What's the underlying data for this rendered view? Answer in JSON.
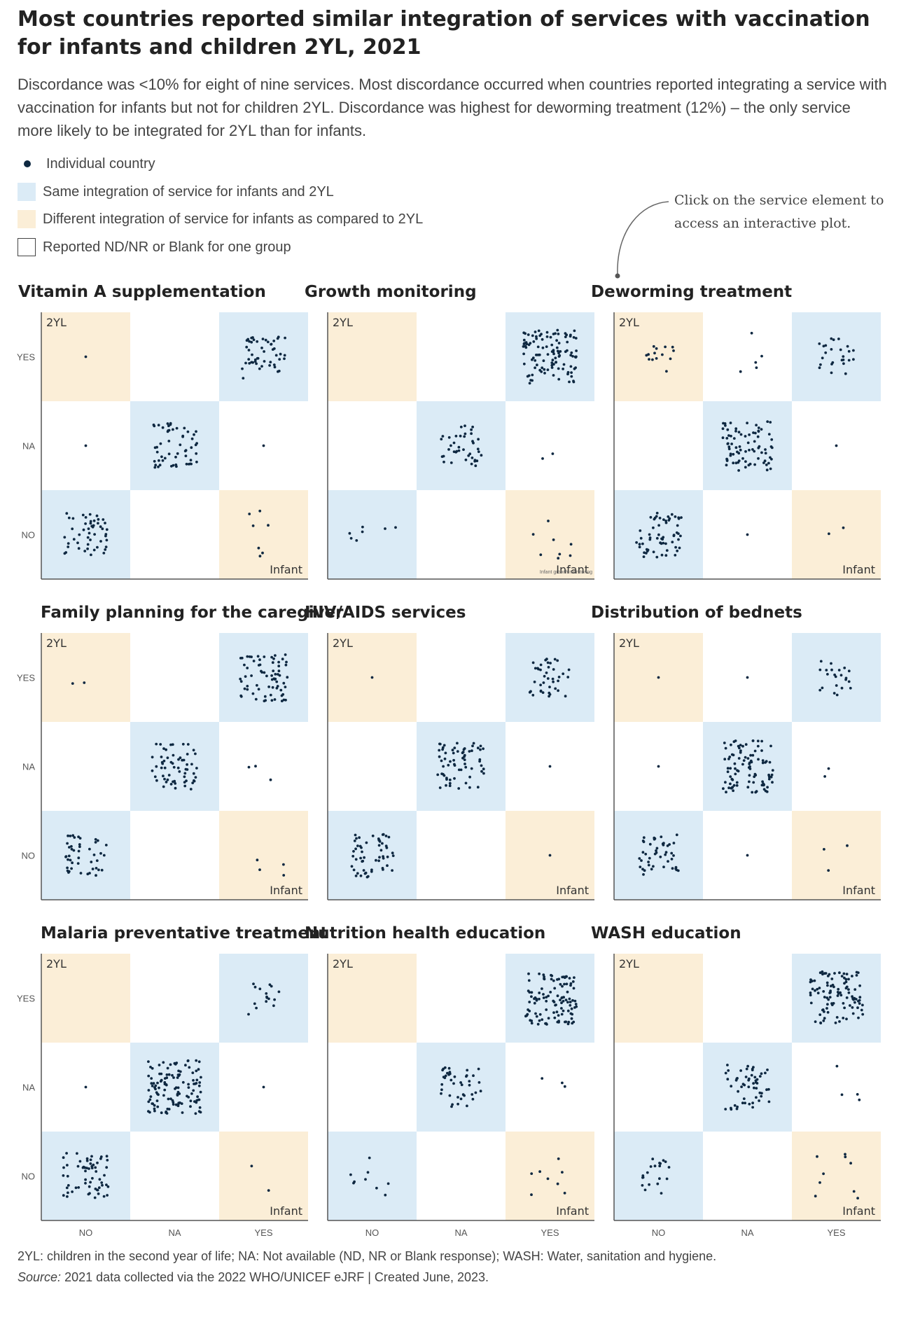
{
  "title": "Most countries reported similar integration of services with vaccination for infants and children 2YL, 2021",
  "subtitle": "Discordance was <10% for eight of nine services. Most discordance occurred when countries reported integrating a service with vaccination for infants but not for children 2YL. Discordance was highest for deworming treatment (12%) – the only service more likely to be integrated for 2YL than for infants.",
  "legend": {
    "individual_country": "Individual country",
    "same": "Same integration of service for infants and 2YL",
    "different": "Different integration of service for infants as compared to 2YL",
    "reported_nd": "Reported ND/NR or Blank for one group"
  },
  "callout": "Click on the service element to access an interactive plot.",
  "colors": {
    "same": "#dbebf6",
    "different": "#fbeed7",
    "dot": "#0e2841",
    "blank_border": "#444444"
  },
  "chart_data": {
    "type": "scatter",
    "x_categories": [
      "NO",
      "NA",
      "YES"
    ],
    "y_categories": [
      "YES",
      "NA",
      "NO"
    ],
    "x_label": "Infant",
    "y_label": "2YL",
    "panel_note": "Infant growth monitoring",
    "panels": [
      {
        "name": "Vitamin A supplementation",
        "counts": {
          "NO|YES": 1,
          "NA|YES": 0,
          "YES|YES": 50,
          "NO|NA": 1,
          "NA|NA": 55,
          "YES|NA": 1,
          "NO|NO": 50,
          "NA|NO": 0,
          "YES|NO": 7
        }
      },
      {
        "name": "Growth monitoring",
        "counts": {
          "NO|YES": 0,
          "NA|YES": 0,
          "YES|YES": 110,
          "NO|NA": 0,
          "NA|NA": 40,
          "YES|NA": 2,
          "NO|NO": 7,
          "NA|NO": 0,
          "YES|NO": 8
        }
      },
      {
        "name": "Deworming treatment",
        "counts": {
          "NO|YES": 14,
          "NA|YES": 5,
          "YES|YES": 25,
          "NO|NA": 0,
          "NA|NA": 80,
          "YES|NA": 1,
          "NO|NO": 60,
          "NA|NO": 1,
          "YES|NO": 2
        }
      },
      {
        "name": "Family planning for the caregiver",
        "counts": {
          "NO|YES": 2,
          "NA|YES": 0,
          "YES|YES": 70,
          "NO|NA": 0,
          "NA|NA": 60,
          "YES|NA": 3,
          "NO|NO": 45,
          "NA|NO": 0,
          "YES|NO": 4
        }
      },
      {
        "name": "HIV/AIDS services",
        "counts": {
          "NO|YES": 1,
          "NA|YES": 0,
          "YES|YES": 40,
          "NO|NA": 0,
          "NA|NA": 65,
          "YES|NA": 1,
          "NO|NO": 55,
          "NA|NO": 0,
          "YES|NO": 1
        }
      },
      {
        "name": "Distribution of bednets",
        "counts": {
          "NO|YES": 1,
          "NA|YES": 1,
          "YES|YES": 22,
          "NO|NA": 1,
          "NA|NA": 95,
          "YES|NA": 2,
          "NO|NO": 45,
          "NA|NO": 1,
          "YES|NO": 3
        }
      },
      {
        "name": "Malaria preventative treatment",
        "counts": {
          "NO|YES": 0,
          "NA|YES": 0,
          "YES|YES": 16,
          "NO|NA": 1,
          "NA|NA": 120,
          "YES|NA": 1,
          "NO|NO": 60,
          "NA|NO": 0,
          "YES|NO": 2
        }
      },
      {
        "name": "Nutrition health education",
        "counts": {
          "NO|YES": 0,
          "NA|YES": 0,
          "YES|YES": 110,
          "NO|NA": 0,
          "NA|NA": 40,
          "YES|NA": 3,
          "NO|NO": 9,
          "NA|NO": 0,
          "YES|NO": 8
        }
      },
      {
        "name": "WASH education",
        "counts": {
          "NO|YES": 0,
          "NA|YES": 0,
          "YES|YES": 100,
          "NO|NA": 0,
          "NA|NA": 55,
          "YES|NA": 4,
          "NO|NO": 20,
          "NA|NO": 0,
          "YES|NO": 9
        }
      }
    ]
  },
  "footnote": {
    "definitions": "2YL: children in the second year of life; NA: Not available (ND, NR or Blank response); WASH: Water, sanitation and hygiene.",
    "source_label": "Source:",
    "source_text": "2021 data collected via the 2022 WHO/UNICEF eJRF | Created June, 2023."
  }
}
